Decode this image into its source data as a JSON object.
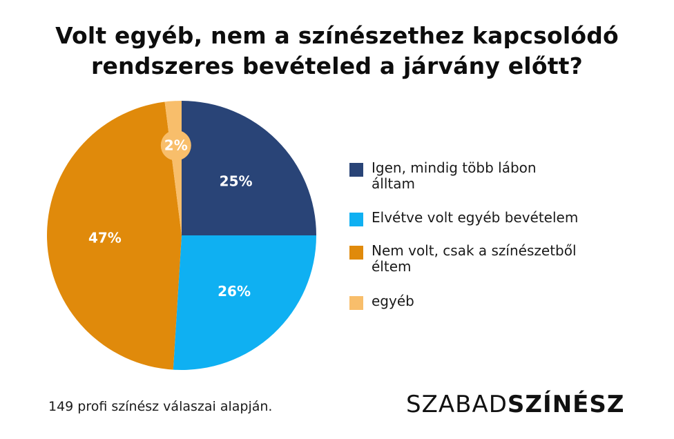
{
  "chart_data": {
    "type": "pie",
    "title_lines": [
      "Volt egyéb, nem a színészethez kapcsolódó",
      "rendszeres bevételed a járvány előtt?"
    ],
    "slices": [
      {
        "label": "Igen, mindig több lábon álltam",
        "legend_lines": [
          "Igen, mindig több lábon",
          "álltam"
        ],
        "value": 25,
        "display": "25%",
        "color": "#294477"
      },
      {
        "label": "Elvétve volt egyéb bevételem",
        "legend_lines": [
          "Elvétve volt egyéb bevételem"
        ],
        "value": 26,
        "display": "26%",
        "color": "#0fb0f2"
      },
      {
        "label": "Nem volt, csak a színészetből éltem",
        "legend_lines": [
          "Nem volt, csak a színészetből",
          "éltem"
        ],
        "value": 47,
        "display": "47%",
        "color": "#e08a0b"
      },
      {
        "label": "egyéb",
        "legend_lines": [
          "egyéb"
        ],
        "value": 2,
        "display": "2%",
        "color": "#f8be6b"
      }
    ],
    "legend_placement": "right"
  },
  "footnote": "149 profi színész válaszai alapján.",
  "brand": {
    "light": "SZABAD",
    "bold": "SZÍNÉSZ"
  }
}
